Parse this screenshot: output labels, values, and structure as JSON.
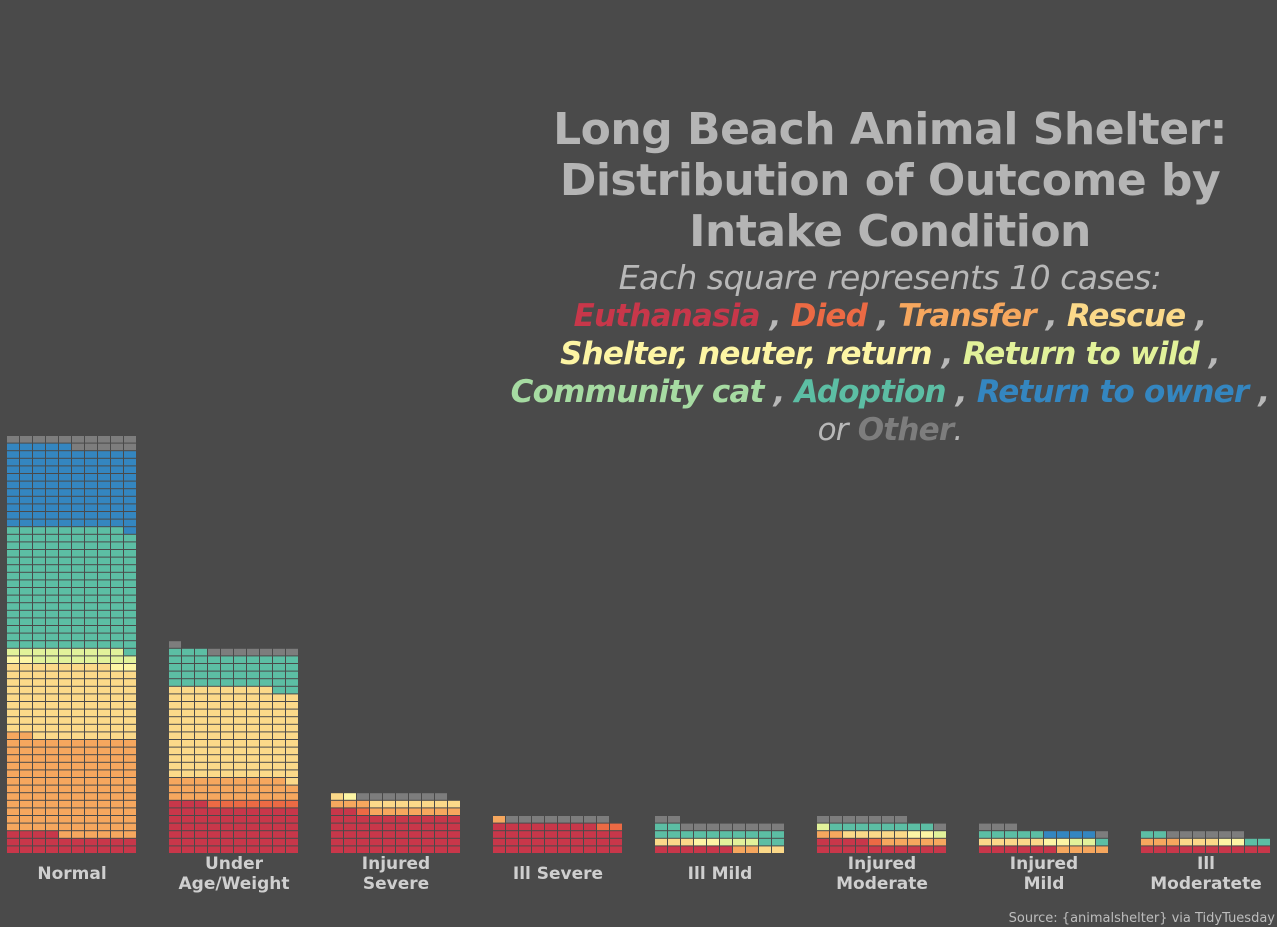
{
  "title": [
    "Long Beach Animal Shelter:",
    "Distribution of Outcome by",
    "Intake Condition"
  ],
  "subtitle": "Each square represents 10  cases:",
  "legend": [
    {
      "label": "Euthanasia",
      "color": "#c8374a"
    },
    {
      "label": "Died",
      "color": "#ec6a44"
    },
    {
      "label": "Transfer",
      "color": "#f6a75e"
    },
    {
      "label": "Rescue",
      "color": "#fbd989"
    },
    {
      "label": "Shelter, neuter, return",
      "color": "#fdf5a4"
    },
    {
      "label": "Return to wild",
      "color": "#e2f29a"
    },
    {
      "label": "Community cat",
      "color": "#a6dba2"
    },
    {
      "label": "Adoption",
      "color": "#5cbea4"
    },
    {
      "label": "Return to owner",
      "color": "#3486c0"
    },
    {
      "label": "Other",
      "color": "#7d7d7d"
    }
  ],
  "legend_connector": "or",
  "source": "Source: {animalshelter} via TidyTuesday",
  "chart_data": {
    "type": "waffle",
    "unit": "Each square represents 10 cases",
    "categories": [
      "Normal",
      "Under\nAge/Weight",
      "Injured\nSevere",
      "Ill Severe",
      "Ill Mild",
      "Injured\nModerate",
      "Injured\nMild",
      "Ill\nModeratete"
    ],
    "series": [
      {
        "name": "Euthanasia",
        "values": [
          240,
          630,
          520,
          380,
          60,
          140,
          60,
          100
        ]
      },
      {
        "name": "Died",
        "values": [
          0,
          70,
          10,
          20,
          0,
          10,
          0,
          0
        ]
      },
      {
        "name": "Transfer",
        "values": [
          1280,
          290,
          100,
          10,
          20,
          70,
          40,
          30
        ]
      },
      {
        "name": "Rescue",
        "values": [
          960,
          1190,
          80,
          0,
          50,
          50,
          50,
          30
        ]
      },
      {
        "name": "Shelter, neuter, return",
        "values": [
          40,
          0,
          10,
          0,
          20,
          20,
          20,
          20
        ]
      },
      {
        "name": "Return to wild",
        "values": [
          170,
          0,
          0,
          0,
          30,
          20,
          20,
          0
        ]
      },
      {
        "name": "Community cat",
        "values": [
          0,
          0,
          0,
          0,
          0,
          0,
          0,
          0
        ]
      },
      {
        "name": "Adoption",
        "values": [
          1600,
          450,
          0,
          0,
          140,
          80,
          60,
          40
        ]
      },
      {
        "name": "Return to owner",
        "values": [
          1060,
          0,
          0,
          0,
          0,
          0,
          40,
          0
        ]
      },
      {
        "name": "Other",
        "values": [
          150,
          80,
          70,
          80,
          100,
          80,
          40,
          60
        ]
      }
    ],
    "grid": false,
    "legend_placement": "subtitle"
  }
}
